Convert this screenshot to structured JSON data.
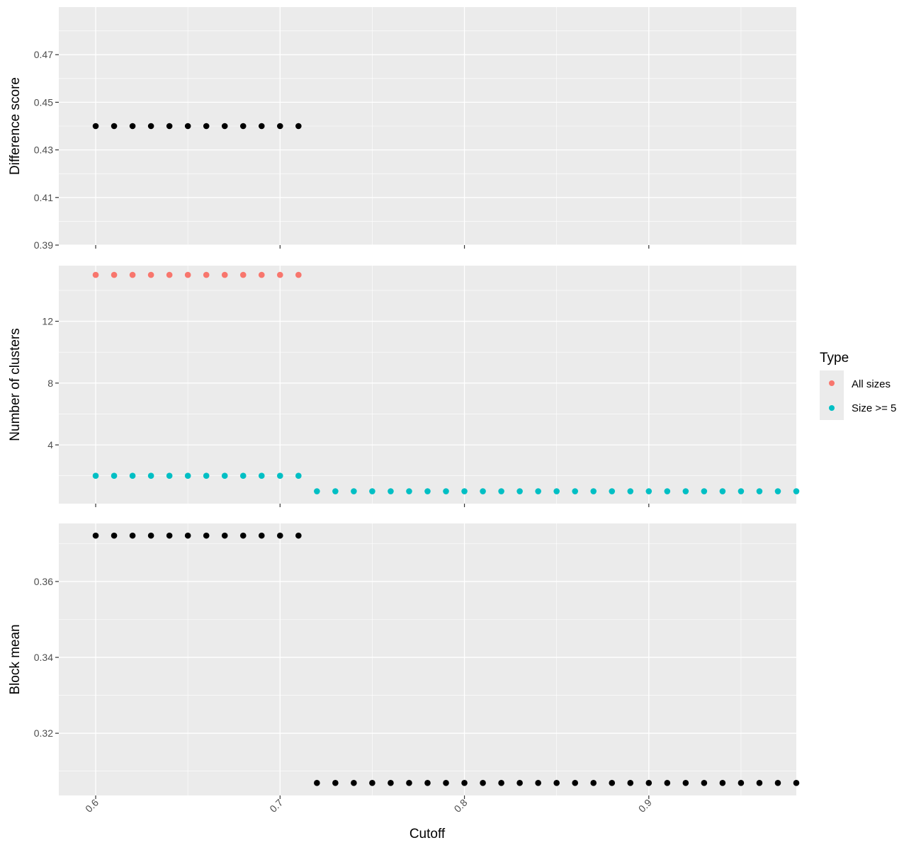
{
  "colors": {
    "panel_bg": "#EBEBEB",
    "grid_major": "#FFFFFF",
    "all_sizes": "#F8766D",
    "size_ge_5": "#00BFC4",
    "point_default": "#000000",
    "tick": "#333333"
  },
  "chart_data": {
    "type": "scatter",
    "facets": 3,
    "x": {
      "label": "Cutoff",
      "range": [
        0.58,
        0.98
      ],
      "ticks": [
        0.6,
        0.7,
        0.8,
        0.9
      ],
      "tick_labels": [
        "0.6",
        "0.7",
        "0.8",
        "0.9"
      ],
      "tick_label_rotation": -45
    },
    "panels": [
      {
        "ylabel": "Difference score",
        "ylim": [
          0.39,
          0.49
        ],
        "y_ticks": [
          0.39,
          0.41,
          0.43,
          0.45,
          0.47
        ],
        "y_tick_labels": [
          "0.39",
          "0.41",
          "0.43",
          "0.45",
          "0.47"
        ],
        "series": [
          {
            "color_key": "point_default",
            "x": [
              0.6,
              0.61,
              0.62,
              0.63,
              0.64,
              0.65,
              0.66,
              0.67,
              0.68,
              0.69,
              0.7,
              0.71
            ],
            "y": [
              0.44,
              0.44,
              0.44,
              0.44,
              0.44,
              0.44,
              0.44,
              0.44,
              0.44,
              0.44,
              0.44,
              0.44
            ]
          }
        ]
      },
      {
        "ylabel": "Number of clusters",
        "ylim": [
          0.2,
          15.6
        ],
        "y_ticks": [
          4,
          8,
          12
        ],
        "y_tick_labels": [
          "4",
          "8",
          "12"
        ],
        "series": [
          {
            "name": "All sizes",
            "color_key": "all_sizes",
            "x": [
              0.6,
              0.61,
              0.62,
              0.63,
              0.64,
              0.65,
              0.66,
              0.67,
              0.68,
              0.69,
              0.7,
              0.71
            ],
            "y": [
              15,
              15,
              15,
              15,
              15,
              15,
              15,
              15,
              15,
              15,
              15,
              15
            ]
          },
          {
            "name": "Size >= 5",
            "color_key": "size_ge_5",
            "x": [
              0.6,
              0.61,
              0.62,
              0.63,
              0.64,
              0.65,
              0.66,
              0.67,
              0.68,
              0.69,
              0.7,
              0.71,
              0.72,
              0.73,
              0.74,
              0.75,
              0.76,
              0.77,
              0.78,
              0.79,
              0.8,
              0.81,
              0.82,
              0.83,
              0.84,
              0.85,
              0.86,
              0.87,
              0.88,
              0.89,
              0.9,
              0.91,
              0.92,
              0.93,
              0.94,
              0.95,
              0.96,
              0.97,
              0.98
            ],
            "y": [
              2,
              2,
              2,
              2,
              2,
              2,
              2,
              2,
              2,
              2,
              2,
              2,
              1,
              1,
              1,
              1,
              1,
              1,
              1,
              1,
              1,
              1,
              1,
              1,
              1,
              1,
              1,
              1,
              1,
              1,
              1,
              1,
              1,
              1,
              1,
              1,
              1,
              1,
              1
            ]
          }
        ]
      },
      {
        "ylabel": "Block mean",
        "ylim": [
          0.3036,
          0.3753
        ],
        "y_ticks": [
          0.32,
          0.34,
          0.36
        ],
        "y_tick_labels": [
          "0.32",
          "0.34",
          "0.36"
        ],
        "series": [
          {
            "color_key": "point_default",
            "x": [
              0.6,
              0.61,
              0.62,
              0.63,
              0.64,
              0.65,
              0.66,
              0.67,
              0.68,
              0.69,
              0.7,
              0.71,
              0.72,
              0.73,
              0.74,
              0.75,
              0.76,
              0.77,
              0.78,
              0.79,
              0.8,
              0.81,
              0.82,
              0.83,
              0.84,
              0.85,
              0.86,
              0.87,
              0.88,
              0.89,
              0.9,
              0.91,
              0.92,
              0.93,
              0.94,
              0.95,
              0.96,
              0.97,
              0.98
            ],
            "y": [
              0.3721,
              0.3721,
              0.3721,
              0.3721,
              0.3721,
              0.3721,
              0.3721,
              0.3721,
              0.3721,
              0.3721,
              0.3721,
              0.3721,
              0.3069,
              0.3069,
              0.3069,
              0.3069,
              0.3069,
              0.3069,
              0.3069,
              0.3069,
              0.3069,
              0.3069,
              0.3069,
              0.3069,
              0.3069,
              0.3069,
              0.3069,
              0.3069,
              0.3069,
              0.3069,
              0.3069,
              0.3069,
              0.3069,
              0.3069,
              0.3069,
              0.3069,
              0.3069,
              0.3069,
              0.3069
            ]
          }
        ]
      }
    ],
    "legend": {
      "title": "Type",
      "placement": "right",
      "entries": [
        {
          "label": "All sizes",
          "color_key": "all_sizes"
        },
        {
          "label": "Size >= 5",
          "color_key": "size_ge_5"
        }
      ]
    }
  }
}
